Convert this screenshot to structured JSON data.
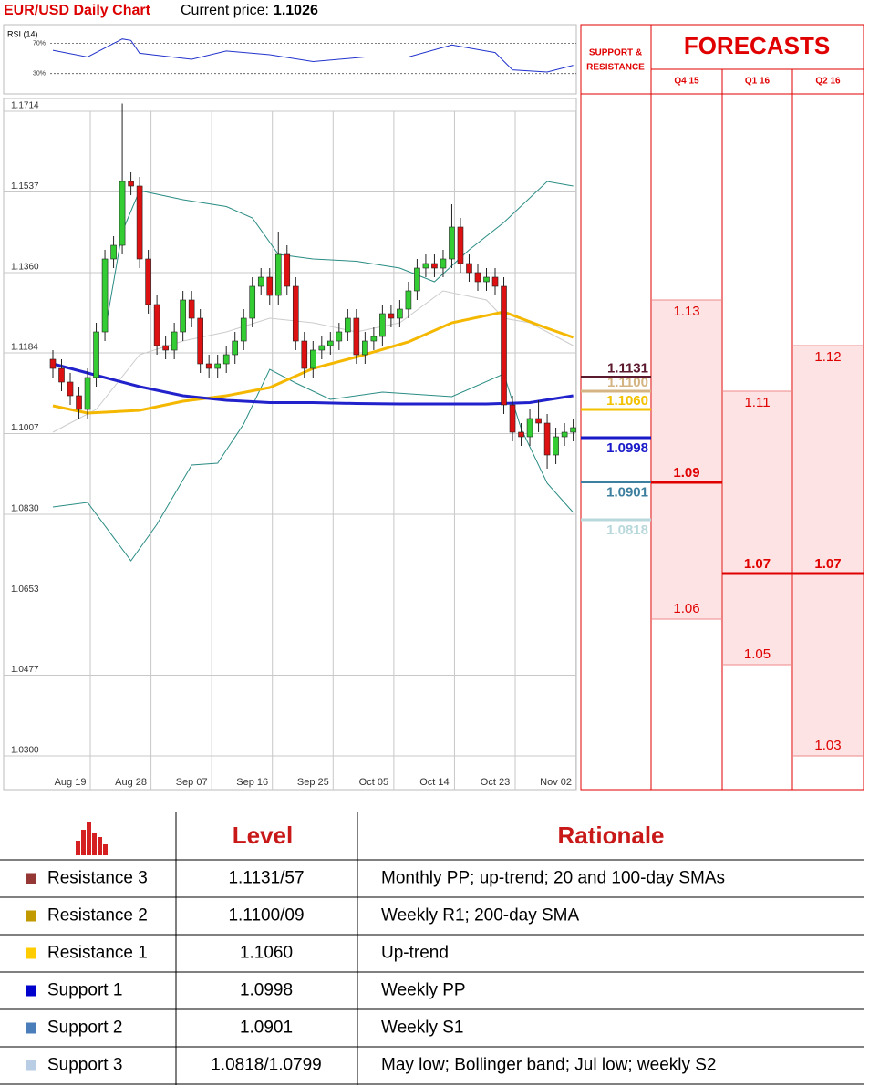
{
  "header": {
    "title": "EUR/USD Daily Chart",
    "price_label": "Current price:",
    "price": 1.1026
  },
  "chart_data": [
    {
      "type": "candlestick",
      "categories": [
        null,
        null,
        "Aug 19",
        null,
        null,
        null,
        null,
        null,
        null,
        "Aug 28",
        null,
        null,
        null,
        null,
        null,
        null,
        "Sep 07",
        null,
        null,
        null,
        null,
        null,
        null,
        "Sep 16",
        null,
        null,
        null,
        null,
        null,
        null,
        "Sep 25",
        null,
        null,
        null,
        null,
        null,
        null,
        "Oct 05",
        null,
        null,
        null,
        null,
        null,
        null,
        "Oct 14",
        null,
        null,
        null,
        null,
        null,
        null,
        "Oct 23",
        null,
        null,
        null,
        null,
        null,
        null,
        "Nov 02",
        null,
        null
      ],
      "open": [
        1.117,
        1.115,
        1.112,
        1.109,
        1.106,
        1.113,
        1.123,
        1.139,
        1.142,
        1.156,
        1.155,
        1.139,
        1.129,
        1.12,
        1.119,
        1.123,
        1.13,
        1.126,
        1.116,
        1.115,
        1.116,
        1.118,
        1.121,
        1.126,
        1.133,
        1.135,
        1.131,
        1.14,
        1.133,
        1.121,
        1.115,
        1.119,
        1.12,
        1.121,
        1.123,
        1.126,
        1.118,
        1.121,
        1.122,
        1.127,
        1.126,
        1.128,
        1.132,
        1.137,
        1.138,
        1.137,
        1.139,
        1.146,
        1.138,
        1.136,
        1.134,
        1.135,
        1.133,
        1.107,
        1.101,
        1.1,
        1.104,
        1.103,
        1.096,
        1.1,
        1.101
      ],
      "high": [
        1.119,
        1.117,
        1.114,
        1.111,
        1.115,
        1.125,
        1.141,
        1.144,
        1.1731,
        1.158,
        1.157,
        1.141,
        1.131,
        1.122,
        1.125,
        1.132,
        1.132,
        1.128,
        1.118,
        1.118,
        1.12,
        1.123,
        1.128,
        1.135,
        1.137,
        1.137,
        1.145,
        1.142,
        1.135,
        1.123,
        1.121,
        1.122,
        1.123,
        1.125,
        1.128,
        1.128,
        1.123,
        1.124,
        1.129,
        1.129,
        1.13,
        1.134,
        1.139,
        1.14,
        1.14,
        1.141,
        1.151,
        1.148,
        1.14,
        1.138,
        1.137,
        1.137,
        1.135,
        1.109,
        1.103,
        1.106,
        1.108,
        1.105,
        1.102,
        1.103,
        1.104
      ],
      "low": [
        1.113,
        1.11,
        1.107,
        1.104,
        1.104,
        1.111,
        1.121,
        1.137,
        1.14,
        1.153,
        1.137,
        1.127,
        1.118,
        1.117,
        1.117,
        1.121,
        1.124,
        1.114,
        1.113,
        1.113,
        1.114,
        1.116,
        1.119,
        1.124,
        1.131,
        1.129,
        1.129,
        1.131,
        1.119,
        1.113,
        1.113,
        1.117,
        1.118,
        1.119,
        1.121,
        1.116,
        1.116,
        1.119,
        1.12,
        1.124,
        1.124,
        1.126,
        1.13,
        1.135,
        1.135,
        1.135,
        1.137,
        1.136,
        1.134,
        1.132,
        1.132,
        1.131,
        1.105,
        1.099,
        1.098,
        1.098,
        1.101,
        1.093,
        1.094,
        1.098,
        1.099
      ],
      "close": [
        1.115,
        1.112,
        1.109,
        1.106,
        1.113,
        1.123,
        1.139,
        1.142,
        1.156,
        1.155,
        1.139,
        1.129,
        1.12,
        1.119,
        1.123,
        1.13,
        1.126,
        1.116,
        1.115,
        1.116,
        1.118,
        1.121,
        1.126,
        1.133,
        1.135,
        1.131,
        1.14,
        1.133,
        1.121,
        1.115,
        1.119,
        1.12,
        1.121,
        1.123,
        1.126,
        1.118,
        1.121,
        1.122,
        1.127,
        1.126,
        1.128,
        1.132,
        1.137,
        1.138,
        1.137,
        1.139,
        1.146,
        1.138,
        1.136,
        1.134,
        1.135,
        1.133,
        1.107,
        1.101,
        1.1,
        1.104,
        1.103,
        1.096,
        1.1,
        1.101,
        1.102
      ],
      "up_color": "#33cc33",
      "down_color": "#dd1111",
      "ylim": [
        1.0226,
        1.1714
      ],
      "yticks": [
        1.1714,
        1.1537,
        {
          "value": 1.136,
          "label": "1.1360"
        },
        1.1184,
        1.1007,
        {
          "value": 1.083,
          "label": "1.0830"
        },
        1.0653,
        1.0477,
        {
          "value": 1.03,
          "label": "1.0300"
        }
      ],
      "grid": true,
      "overlays": [
        {
          "color": "#cccccc",
          "width": 1,
          "x": [
            0,
            5,
            10,
            15,
            20,
            25,
            30,
            35,
            40,
            45,
            50,
            52,
            55,
            60
          ],
          "values": [
            1.101,
            1.106,
            1.118,
            1.121,
            1.123,
            1.126,
            1.125,
            1.123,
            1.125,
            1.132,
            1.13,
            1.126,
            1.125,
            1.12
          ]
        },
        {
          "color": "#2a8c84",
          "width": 1,
          "x": [
            6,
            8,
            10,
            15,
            20,
            23,
            26,
            30,
            35,
            40,
            44,
            48,
            52,
            57,
            60
          ],
          "values": [
            1.123,
            1.145,
            1.154,
            1.152,
            1.1505,
            1.148,
            1.14,
            1.139,
            1.1385,
            1.137,
            1.134,
            1.141,
            1.147,
            1.156,
            1.155
          ]
        },
        {
          "color": "#2a8c84",
          "width": 1,
          "x": [
            0,
            4,
            9,
            12,
            16,
            19,
            22,
            25,
            28,
            32,
            38,
            46,
            52,
            54,
            57,
            60
          ],
          "values": [
            1.0846,
            1.0856,
            1.0728,
            1.0808,
            1.0938,
            1.0942,
            1.1028,
            1.1148,
            1.1118,
            1.1082,
            1.1098,
            1.1088,
            1.1138,
            1.1018,
            1.0898,
            1.0834
          ]
        },
        {
          "color": "#f5b800",
          "width": 3,
          "x": [
            0,
            4,
            10,
            15,
            20,
            25,
            30,
            35,
            41,
            46,
            52,
            57,
            60
          ],
          "values": [
            1.1068,
            1.1052,
            1.1058,
            1.1078,
            1.109,
            1.1108,
            1.115,
            1.1175,
            1.1208,
            1.125,
            1.1274,
            1.1238,
            1.1218
          ]
        },
        {
          "color": "#2222cc",
          "width": 3,
          "x": [
            0,
            5,
            10,
            15,
            20,
            25,
            30,
            35,
            40,
            45,
            50,
            55,
            60
          ],
          "values": [
            1.116,
            1.1135,
            1.111,
            1.109,
            1.108,
            1.1075,
            1.1075,
            1.1073,
            1.1072,
            1.1072,
            1.1072,
            1.1075,
            1.109
          ]
        }
      ]
    },
    {
      "type": "line",
      "title": "RSI (14)",
      "color": "#2233cc",
      "x": [
        0,
        4,
        8,
        9,
        10,
        16,
        20,
        25,
        30,
        36,
        41,
        46,
        51,
        53,
        57,
        59,
        60
      ],
      "values": [
        61,
        52,
        76,
        74,
        57,
        49,
        60,
        55,
        46,
        52,
        52,
        68,
        58,
        35,
        32,
        38,
        41
      ],
      "ylim": [
        3,
        95
      ],
      "yticks": [
        {
          "value": 70,
          "label": "70%"
        },
        {
          "value": 30,
          "label": "30%"
        }
      ]
    }
  ],
  "levels": {
    "title": [
      "SUPPORT &",
      "RESISTANCE"
    ],
    "values": [
      1.1131,
      1.11,
      1.106,
      1.0998,
      1.0901,
      1.0818
    ],
    "value_labels": [
      "1.1131",
      "1.1100",
      "1.1060",
      "1.0998",
      "1.0901",
      "1.0818"
    ],
    "colors": [
      "#5b1a2e",
      "#d4b483",
      "#f2c200",
      "#1a1ac8",
      "#3d7f9e",
      "#b8d8dc"
    ]
  },
  "forecasts": {
    "title": "FORECASTS",
    "columns": [
      {
        "name": "Q4 15",
        "high": 1.13,
        "mid": 1.09,
        "low": 1.06
      },
      {
        "name": "Q1 16",
        "high": 1.11,
        "mid": 1.07,
        "low": 1.05
      },
      {
        "name": "Q2 16",
        "high": 1.12,
        "mid": 1.07,
        "low": 1.03
      }
    ]
  },
  "table": {
    "headers": [
      "Level",
      "Rationale"
    ],
    "rows": [
      {
        "color": "#953735",
        "name": "Resistance 3",
        "level": "1.1131/57",
        "rationale": "Monthly PP; up-trend; 20 and 100-day SMAs"
      },
      {
        "color": "#c09a00",
        "name": "Resistance 2",
        "level": "1.1100/09",
        "rationale": "Weekly R1; 200-day SMA"
      },
      {
        "color": "#ffcc00",
        "name": "Resistance 1",
        "level": "1.1060",
        "rationale": "Up-trend"
      },
      {
        "color": "#0000cc",
        "name": "Support 1",
        "level": "1.0998",
        "rationale": "Weekly PP"
      },
      {
        "color": "#4a7ebb",
        "name": "Support 2",
        "level": "1.0901",
        "rationale": "Weekly S1"
      },
      {
        "color": "#b9cde5",
        "name": "Support 3",
        "level": "1.0818/1.0799",
        "rationale": "May low; Bollinger band; Jul low; weekly S2"
      }
    ]
  }
}
